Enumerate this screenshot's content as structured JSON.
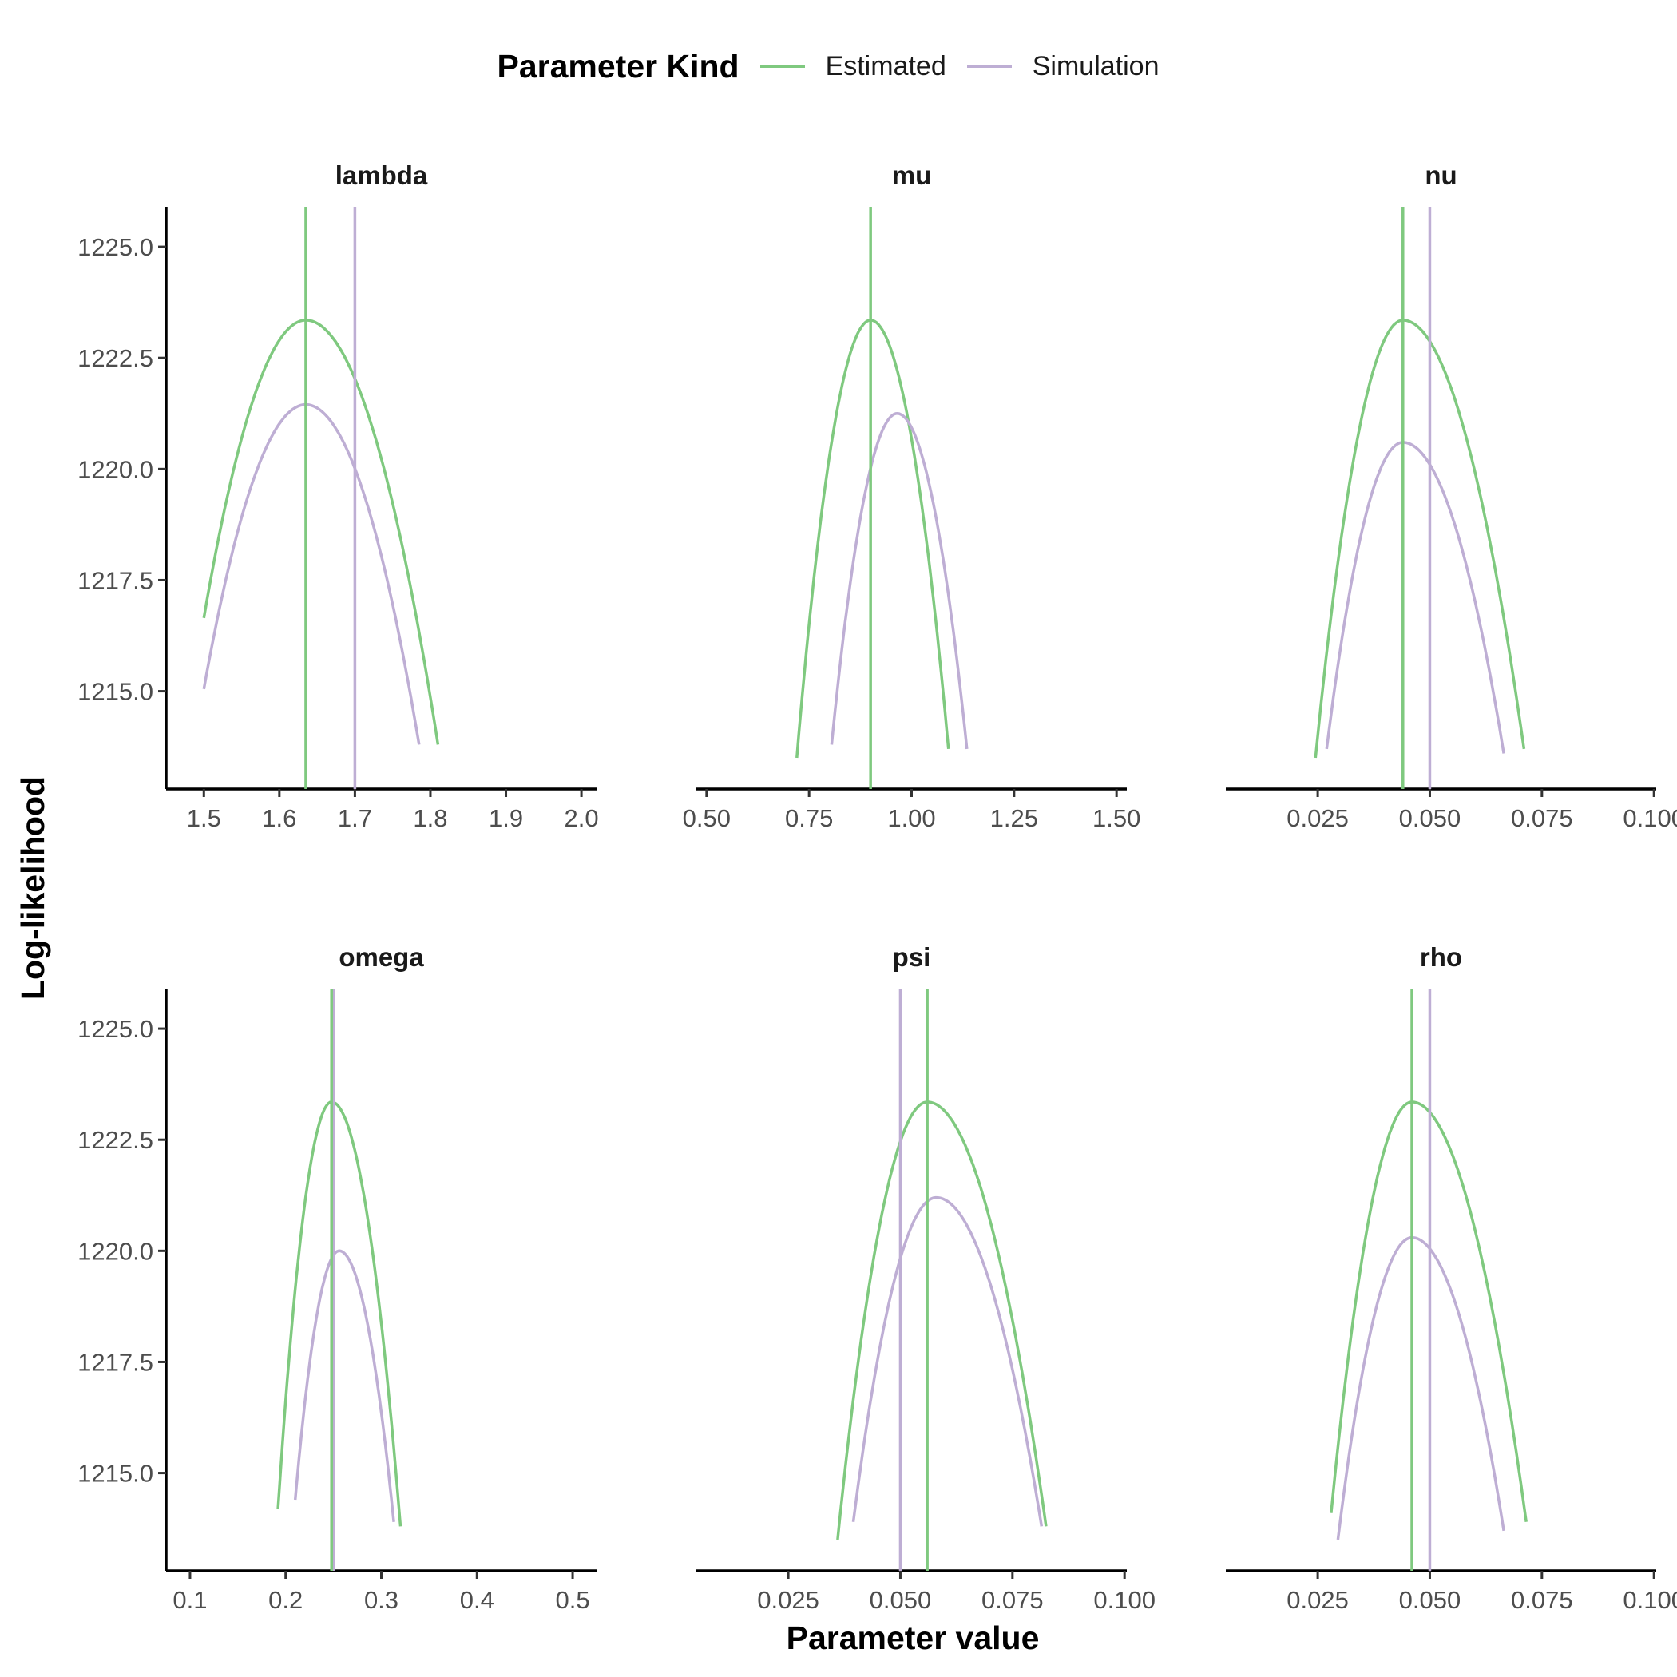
{
  "legend": {
    "title": "Parameter Kind",
    "items": [
      {
        "label": "Estimated",
        "color": "#7fc97f"
      },
      {
        "label": "Simulation",
        "color": "#beaed4"
      }
    ]
  },
  "axis_titles": {
    "x": "Parameter value",
    "y": "Log-likelihood"
  },
  "chart_data": [
    {
      "type": "line",
      "title": "lambda",
      "xlim": [
        1.45,
        2.02
      ],
      "ylim": [
        1212.8,
        1225.9
      ],
      "xticks": [
        1.5,
        1.6,
        1.7,
        1.8,
        1.9,
        2.0
      ],
      "xtick_labels": [
        "1.5",
        "1.6",
        "1.7",
        "1.8",
        "1.9",
        "2.0"
      ],
      "yticks": [
        1215.0,
        1217.5,
        1220.0,
        1222.5,
        1225.0
      ],
      "ytick_labels": [
        "1215.0",
        "1217.5",
        "1220.0",
        "1222.5",
        "1225.0"
      ],
      "show_y_axis": true,
      "series": [
        {
          "name": "Estimated",
          "curve": {
            "peak_x": 1.635,
            "peak_y": 1223.35,
            "xmin": 1.5,
            "xmax": 1.81,
            "y_at_xmin": 1216.65,
            "y_at_xmax": 1213.8
          },
          "vline": 1.635
        },
        {
          "name": "Simulation",
          "curve": {
            "peak_x": 1.635,
            "peak_y": 1221.45,
            "xmin": 1.5,
            "xmax": 1.785,
            "y_at_xmin": 1215.05,
            "y_at_xmax": 1213.8
          },
          "vline": 1.7
        }
      ]
    },
    {
      "type": "line",
      "title": "mu",
      "xlim": [
        0.475,
        1.525
      ],
      "ylim": [
        1212.8,
        1225.9
      ],
      "xticks": [
        0.5,
        0.75,
        1.0,
        1.25,
        1.5
      ],
      "xtick_labels": [
        "0.50",
        "0.75",
        "1.00",
        "1.25",
        "1.50"
      ],
      "yticks": [
        1215.0,
        1217.5,
        1220.0,
        1222.5,
        1225.0
      ],
      "ytick_labels": [
        "1215.0",
        "1217.5",
        "1220.0",
        "1222.5",
        "1225.0"
      ],
      "show_y_axis": false,
      "series": [
        {
          "name": "Estimated",
          "curve": {
            "peak_x": 0.9,
            "peak_y": 1223.35,
            "xmin": 0.72,
            "xmax": 1.09,
            "y_at_xmin": 1213.5,
            "y_at_xmax": 1213.7
          },
          "vline": 0.9
        },
        {
          "name": "Simulation",
          "curve": {
            "peak_x": 0.965,
            "peak_y": 1221.25,
            "xmin": 0.805,
            "xmax": 1.135,
            "y_at_xmin": 1213.8,
            "y_at_xmax": 1213.7
          },
          "vline": null
        }
      ]
    },
    {
      "type": "line",
      "title": "nu",
      "xlim": [
        0.0045,
        0.1005
      ],
      "ylim": [
        1212.8,
        1225.9
      ],
      "xticks": [
        0.025,
        0.05,
        0.075,
        0.1
      ],
      "xtick_labels": [
        "0.025",
        "0.050",
        "0.075",
        "0.100"
      ],
      "yticks": [
        1215.0,
        1217.5,
        1220.0,
        1222.5,
        1225.0
      ],
      "ytick_labels": [
        "1215.0",
        "1217.5",
        "1220.0",
        "1222.5",
        "1225.0"
      ],
      "show_y_axis": false,
      "series": [
        {
          "name": "Estimated",
          "curve": {
            "peak_x": 0.044,
            "peak_y": 1223.35,
            "xmin": 0.0245,
            "xmax": 0.071,
            "y_at_xmin": 1213.5,
            "y_at_xmax": 1213.7
          },
          "vline": 0.044
        },
        {
          "name": "Simulation",
          "curve": {
            "peak_x": 0.044,
            "peak_y": 1220.6,
            "xmin": 0.027,
            "xmax": 0.0665,
            "y_at_xmin": 1213.7,
            "y_at_xmax": 1213.6
          },
          "vline": 0.05
        }
      ]
    },
    {
      "type": "line",
      "title": "omega",
      "xlim": [
        0.075,
        0.525
      ],
      "ylim": [
        1212.8,
        1225.9
      ],
      "xticks": [
        0.1,
        0.2,
        0.3,
        0.4,
        0.5
      ],
      "xtick_labels": [
        "0.1",
        "0.2",
        "0.3",
        "0.4",
        "0.5"
      ],
      "yticks": [
        1215.0,
        1217.5,
        1220.0,
        1222.5,
        1225.0
      ],
      "ytick_labels": [
        "1215.0",
        "1217.5",
        "1220.0",
        "1222.5",
        "1225.0"
      ],
      "show_y_axis": true,
      "series": [
        {
          "name": "Estimated",
          "curve": {
            "peak_x": 0.248,
            "peak_y": 1223.35,
            "xmin": 0.192,
            "xmax": 0.32,
            "y_at_xmin": 1214.2,
            "y_at_xmax": 1213.8
          },
          "vline": 0.248
        },
        {
          "name": "Simulation",
          "curve": {
            "peak_x": 0.256,
            "peak_y": 1220.0,
            "xmin": 0.21,
            "xmax": 0.313,
            "y_at_xmin": 1214.4,
            "y_at_xmax": 1213.9
          },
          "vline": 0.25
        }
      ]
    },
    {
      "type": "line",
      "title": "psi",
      "xlim": [
        0.0045,
        0.1005
      ],
      "ylim": [
        1212.8,
        1225.9
      ],
      "xticks": [
        0.025,
        0.05,
        0.075,
        0.1
      ],
      "xtick_labels": [
        "0.025",
        "0.050",
        "0.075",
        "0.100"
      ],
      "yticks": [
        1215.0,
        1217.5,
        1220.0,
        1222.5,
        1225.0
      ],
      "ytick_labels": [
        "1215.0",
        "1217.5",
        "1220.0",
        "1222.5",
        "1225.0"
      ],
      "show_y_axis": false,
      "series": [
        {
          "name": "Estimated",
          "curve": {
            "peak_x": 0.056,
            "peak_y": 1223.35,
            "xmin": 0.036,
            "xmax": 0.0825,
            "y_at_xmin": 1213.5,
            "y_at_xmax": 1213.8
          },
          "vline": 0.056
        },
        {
          "name": "Simulation",
          "curve": {
            "peak_x": 0.058,
            "peak_y": 1221.2,
            "xmin": 0.0395,
            "xmax": 0.0815,
            "y_at_xmin": 1213.9,
            "y_at_xmax": 1213.8
          },
          "vline": 0.05
        }
      ]
    },
    {
      "type": "line",
      "title": "rho",
      "xlim": [
        0.0045,
        0.1005
      ],
      "ylim": [
        1212.8,
        1225.9
      ],
      "xticks": [
        0.025,
        0.05,
        0.075,
        0.1
      ],
      "xtick_labels": [
        "0.025",
        "0.050",
        "0.075",
        "0.100"
      ],
      "yticks": [
        1215.0,
        1217.5,
        1220.0,
        1222.5,
        1225.0
      ],
      "ytick_labels": [
        "1215.0",
        "1217.5",
        "1220.0",
        "1222.5",
        "1225.0"
      ],
      "show_y_axis": false,
      "series": [
        {
          "name": "Estimated",
          "curve": {
            "peak_x": 0.046,
            "peak_y": 1223.35,
            "xmin": 0.028,
            "xmax": 0.0715,
            "y_at_xmin": 1214.1,
            "y_at_xmax": 1213.9
          },
          "vline": 0.046
        },
        {
          "name": "Simulation",
          "curve": {
            "peak_x": 0.046,
            "peak_y": 1220.3,
            "xmin": 0.0295,
            "xmax": 0.0665,
            "y_at_xmin": 1213.5,
            "y_at_xmax": 1213.7
          },
          "vline": 0.05
        }
      ]
    }
  ]
}
